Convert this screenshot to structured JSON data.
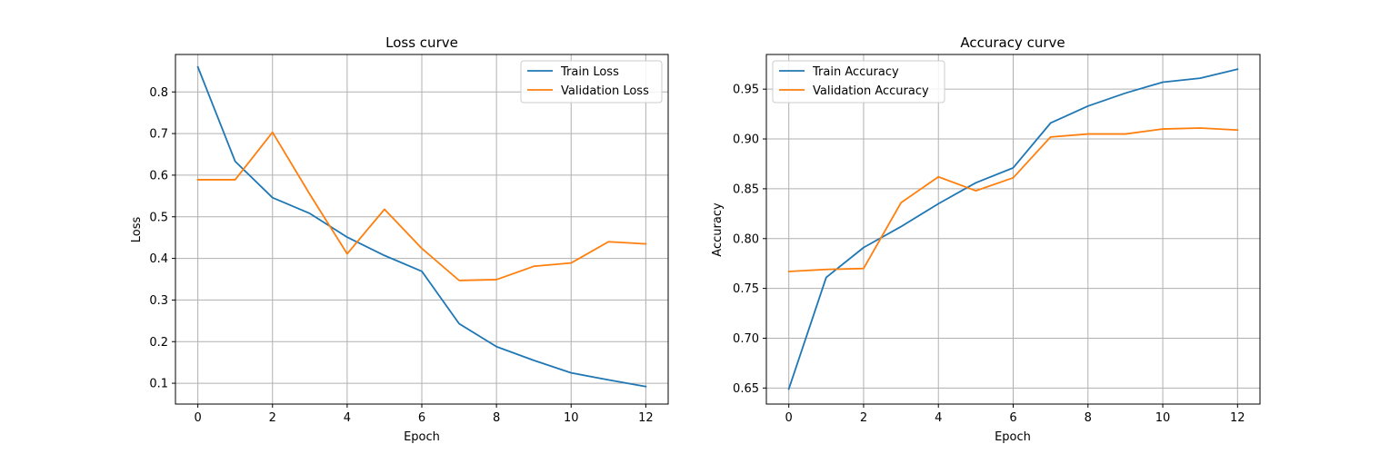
{
  "chart_data": [
    {
      "type": "line",
      "title": "Loss curve",
      "xlabel": "Epoch",
      "ylabel": "Loss",
      "x": [
        0,
        1,
        2,
        3,
        4,
        5,
        6,
        7,
        8,
        9,
        10,
        11,
        12
      ],
      "xlim": [
        -0.6,
        12.6
      ],
      "ylim": [
        0.05,
        0.89
      ],
      "xticks": [
        0,
        2,
        4,
        6,
        8,
        10,
        12
      ],
      "yticks": [
        0.1,
        0.2,
        0.3,
        0.4,
        0.5,
        0.6,
        0.7,
        0.8
      ],
      "grid": true,
      "legend_position": "top-right",
      "series": [
        {
          "name": "Train Loss",
          "color": "#1f77b4",
          "values": [
            0.86,
            0.633,
            0.546,
            0.508,
            0.451,
            0.407,
            0.369,
            0.243,
            0.188,
            0.155,
            0.125,
            0.108,
            0.092
          ]
        },
        {
          "name": "Validation Loss",
          "color": "#ff7f0e",
          "values": [
            0.589,
            0.589,
            0.703,
            0.554,
            0.411,
            0.518,
            0.424,
            0.347,
            0.349,
            0.381,
            0.389,
            0.44,
            0.435
          ]
        }
      ]
    },
    {
      "type": "line",
      "title": "Accuracy curve",
      "xlabel": "Epoch",
      "ylabel": "Accuracy",
      "x": [
        0,
        1,
        2,
        3,
        4,
        5,
        6,
        7,
        8,
        9,
        10,
        11,
        12
      ],
      "xlim": [
        -0.6,
        12.6
      ],
      "ylim": [
        0.6339,
        0.9848
      ],
      "xticks": [
        0,
        2,
        4,
        6,
        8,
        10,
        12
      ],
      "yticks": [
        0.65,
        0.7,
        0.75,
        0.8,
        0.85,
        0.9,
        0.95
      ],
      "ytick_labels": [
        "0.65",
        "0.70",
        "0.75",
        "0.80",
        "0.85",
        "0.90",
        "0.95"
      ],
      "grid": true,
      "legend_position": "top-left",
      "series": [
        {
          "name": "Train Accuracy",
          "color": "#1f77b4",
          "values": [
            0.649,
            0.761,
            0.791,
            0.812,
            0.835,
            0.856,
            0.871,
            0.916,
            0.933,
            0.946,
            0.957,
            0.961,
            0.97
          ]
        },
        {
          "name": "Validation Accuracy",
          "color": "#ff7f0e",
          "values": [
            0.767,
            0.769,
            0.77,
            0.836,
            0.862,
            0.848,
            0.861,
            0.902,
            0.905,
            0.905,
            0.91,
            0.911,
            0.909
          ]
        }
      ]
    }
  ]
}
